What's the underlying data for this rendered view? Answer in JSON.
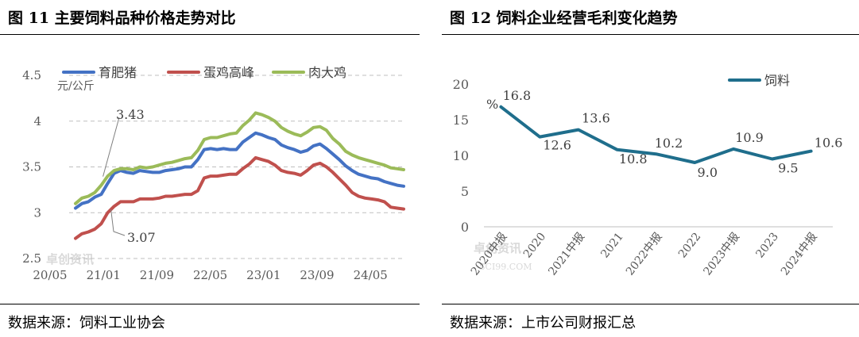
{
  "left": {
    "title": "图  11 主要饲料品种价格走势对比",
    "source": "数据来源：饲料工业协会",
    "watermark": "卓创资讯",
    "chart_data": {
      "type": "line",
      "ylabel": "元/公斤",
      "ylim": [
        2.5,
        4.5
      ],
      "yticks": [
        "2.5",
        "3",
        "3.5",
        "4",
        "4.5"
      ],
      "x_ticks": [
        "20/05",
        "21/01",
        "21/09",
        "22/05",
        "23/01",
        "23/09",
        "24/05"
      ],
      "legend_position": "top",
      "grid": "horizontal-dashed",
      "annotations": [
        {
          "text": "3.43",
          "series": 0,
          "index": 6
        },
        {
          "text": "3.07",
          "series": 1,
          "index": 6
        }
      ],
      "series": [
        {
          "name": "育肥猪",
          "color": "#4472C4",
          "values": [
            3.05,
            3.1,
            3.12,
            3.17,
            3.2,
            3.32,
            3.43,
            3.46,
            3.44,
            3.43,
            3.46,
            3.45,
            3.44,
            3.44,
            3.46,
            3.47,
            3.48,
            3.5,
            3.5,
            3.58,
            3.69,
            3.7,
            3.69,
            3.7,
            3.69,
            3.69,
            3.77,
            3.82,
            3.87,
            3.85,
            3.82,
            3.8,
            3.74,
            3.71,
            3.69,
            3.66,
            3.68,
            3.73,
            3.75,
            3.7,
            3.64,
            3.58,
            3.51,
            3.46,
            3.42,
            3.4,
            3.38,
            3.37,
            3.34,
            3.32,
            3.3,
            3.29
          ]
        },
        {
          "name": "蛋鸡高峰",
          "color": "#C0504D",
          "values": [
            2.72,
            2.77,
            2.79,
            2.82,
            2.88,
            3.0,
            3.07,
            3.12,
            3.12,
            3.12,
            3.15,
            3.15,
            3.15,
            3.16,
            3.18,
            3.18,
            3.19,
            3.2,
            3.2,
            3.24,
            3.38,
            3.4,
            3.4,
            3.41,
            3.42,
            3.42,
            3.48,
            3.53,
            3.6,
            3.58,
            3.56,
            3.52,
            3.46,
            3.44,
            3.43,
            3.41,
            3.46,
            3.52,
            3.54,
            3.5,
            3.44,
            3.37,
            3.3,
            3.22,
            3.18,
            3.16,
            3.15,
            3.14,
            3.12,
            3.06,
            3.05,
            3.04
          ]
        },
        {
          "name": "肉大鸡",
          "color": "#9BBB59",
          "values": [
            3.1,
            3.16,
            3.18,
            3.22,
            3.3,
            3.4,
            3.46,
            3.48,
            3.48,
            3.47,
            3.5,
            3.49,
            3.5,
            3.52,
            3.54,
            3.55,
            3.57,
            3.59,
            3.6,
            3.68,
            3.8,
            3.82,
            3.82,
            3.84,
            3.86,
            3.87,
            3.95,
            4.01,
            4.09,
            4.07,
            4.04,
            4.0,
            3.93,
            3.89,
            3.86,
            3.84,
            3.88,
            3.93,
            3.94,
            3.9,
            3.81,
            3.75,
            3.67,
            3.63,
            3.6,
            3.58,
            3.56,
            3.54,
            3.52,
            3.49,
            3.48,
            3.47
          ]
        }
      ]
    }
  },
  "right": {
    "title": "图  12 饲料企业经营毛利变化趋势",
    "source": "数据来源：上市公司财报汇总",
    "watermark": "卓创资讯",
    "watermark_sub": "SCI99.COM",
    "chart_data": {
      "type": "line",
      "ylabel": "%",
      "ylim": [
        0,
        20
      ],
      "yticks": [
        "0",
        "5",
        "10",
        "15",
        "20"
      ],
      "categories": [
        "2020中报",
        "2020",
        "2021中报",
        "2021",
        "2022中报",
        "2022",
        "2023中报",
        "2023",
        "2024中报"
      ],
      "legend_position": "top-right",
      "grid": "none",
      "series": [
        {
          "name": "饲料",
          "color": "#1F6E8C",
          "values": [
            16.8,
            12.6,
            13.6,
            10.8,
            10.2,
            9.0,
            10.9,
            9.5,
            10.6
          ],
          "labels": [
            "16.8",
            "12.6",
            "13.6",
            "10.8",
            "10.2",
            "9.0",
            "10.9",
            "9.5",
            "10.6"
          ]
        }
      ]
    }
  }
}
